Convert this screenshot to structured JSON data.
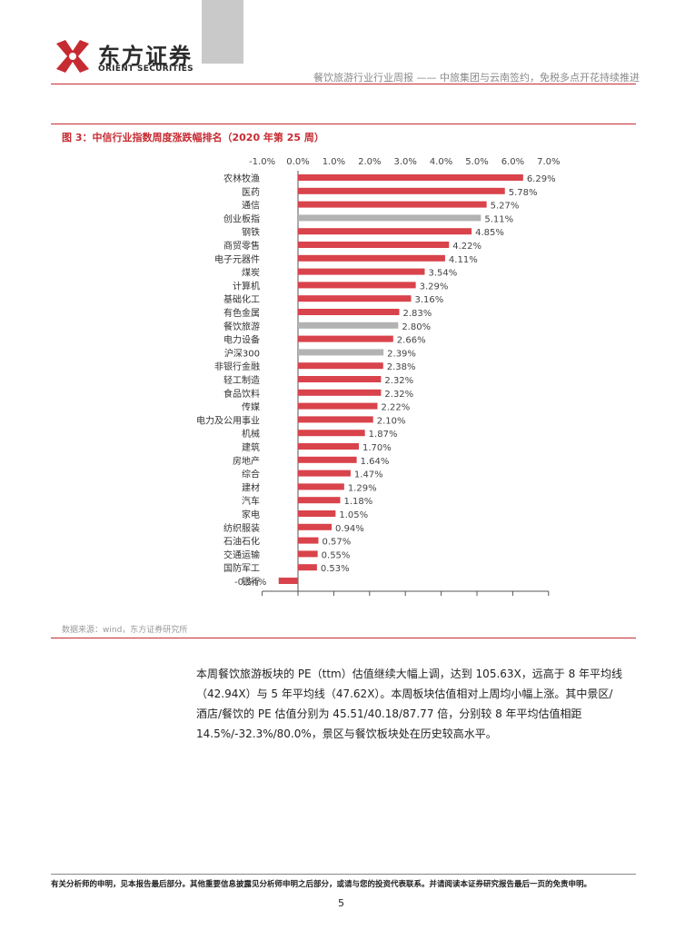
{
  "header": {
    "logo_cn": "东方证券",
    "logo_en": "ORIENT SECURITIES",
    "title": "餐饮旅游行业行业周报 —— 中旅集团与云南签约，免税多点开花持续推进"
  },
  "colors": {
    "accent": "#c62b32",
    "bar_red": "#d9434b",
    "bar_gray": "#b3b3b3"
  },
  "figure": {
    "title": "图 3：中信行业指数周度涨跌幅排名（2020 年第 25 周）",
    "source": "数据来源：wind，东方证券研究所"
  },
  "chart_data": {
    "type": "bar",
    "orientation": "horizontal",
    "xlim": [
      -1.0,
      7.0
    ],
    "ticks": [
      "-1.0%",
      "0.0%",
      "1.0%",
      "2.0%",
      "3.0%",
      "4.0%",
      "5.0%",
      "6.0%",
      "7.0%"
    ],
    "tick_values": [
      -1,
      0,
      1,
      2,
      3,
      4,
      5,
      6,
      7
    ],
    "categories": [
      "农林牧渔",
      "医药",
      "通信",
      "创业板指",
      "钢铁",
      "商贸零售",
      "电子元器件",
      "煤炭",
      "计算机",
      "基础化工",
      "有色金属",
      "餐饮旅游",
      "电力设备",
      "沪深300",
      "非银行金融",
      "轻工制造",
      "食品饮料",
      "传媒",
      "电力及公用事业",
      "机械",
      "建筑",
      "房地产",
      "综合",
      "建材",
      "汽车",
      "家电",
      "纺织服装",
      "石油石化",
      "交通运输",
      "国防军工",
      "银行"
    ],
    "values": [
      6.29,
      5.78,
      5.27,
      5.11,
      4.85,
      4.22,
      4.11,
      3.54,
      3.29,
      3.16,
      2.83,
      2.8,
      2.66,
      2.39,
      2.38,
      2.32,
      2.32,
      2.22,
      2.1,
      1.87,
      1.7,
      1.64,
      1.47,
      1.29,
      1.18,
      1.05,
      0.94,
      0.57,
      0.55,
      0.53,
      -0.54
    ],
    "value_labels": [
      "6.29%",
      "5.78%",
      "5.27%",
      "5.11%",
      "4.85%",
      "4.22%",
      "4.11%",
      "3.54%",
      "3.29%",
      "3.16%",
      "2.83%",
      "2.80%",
      "2.66%",
      "2.39%",
      "2.38%",
      "2.32%",
      "2.32%",
      "2.22%",
      "2.10%",
      "1.87%",
      "1.70%",
      "1.64%",
      "1.47%",
      "1.29%",
      "1.18%",
      "1.05%",
      "0.94%",
      "0.57%",
      "0.55%",
      "0.53%",
      "-0.54%"
    ],
    "highlight": [
      "创业板指",
      "餐饮旅游",
      "沪深300"
    ]
  },
  "body": {
    "paragraph": "本周餐饮旅游板块的 PE（ttm）估值继续大幅上调，达到 105.63X，远高于 8 年平均线（42.94X）与 5 年平均线（47.62X）。本周板块估值相对上周均小幅上涨。其中景区/酒店/餐饮的 PE 估值分别为 45.51/40.18/87.77 倍，分别较 8 年平均估值相距 14.5%/-32.3%/80.0%，景区与餐饮板块处在历史较高水平。"
  },
  "footer": {
    "disclaimer": "有关分析师的申明，见本报告最后部分。其他重要信息披露见分析师申明之后部分，或请与您的投资代表联系。并请阅读本证券研究报告最后一页的免责申明。",
    "page": "5"
  }
}
